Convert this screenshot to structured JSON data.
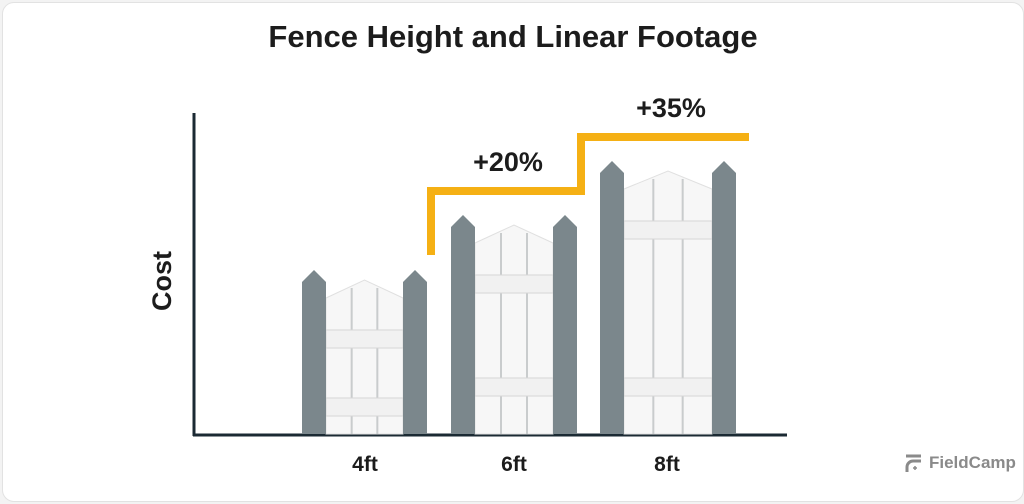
{
  "chart_data": {
    "type": "bar",
    "title": "Fence Height and Linear Footage",
    "xlabel": "",
    "ylabel": "Cost",
    "categories": [
      "4ft",
      "6ft",
      "8ft"
    ],
    "annotations": [
      "+20%",
      "+35%"
    ],
    "colors": {
      "post": "#7b878c",
      "panel": "#f7f7f7",
      "step_line": "#f5b014",
      "axis": "#1b2a33"
    },
    "grid": false
  },
  "brand": {
    "name": "FieldCamp"
  }
}
